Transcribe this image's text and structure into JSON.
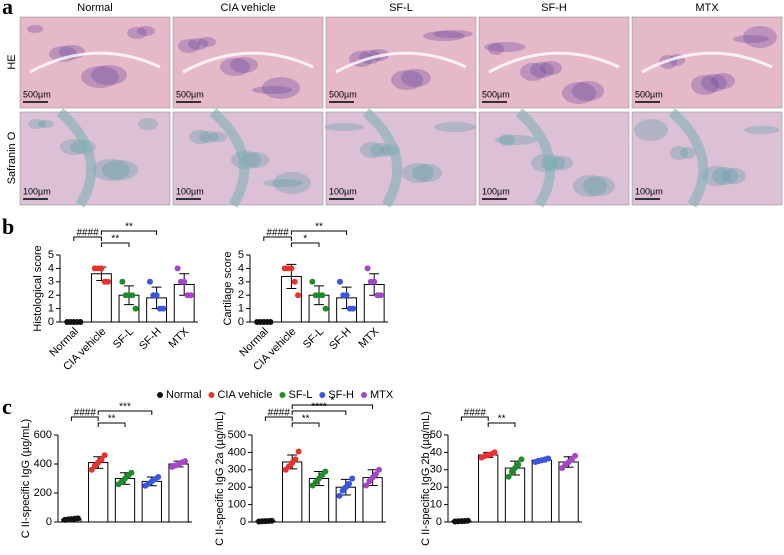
{
  "panel_labels": [
    "a",
    "b",
    "c"
  ],
  "histology": {
    "columns": [
      "Normal",
      "CIA vehicle",
      "SF-L",
      "SF-H",
      "MTX"
    ],
    "rows": [
      "HE",
      "Safranin O"
    ],
    "scale_bars": [
      "500µm",
      "100µm"
    ]
  },
  "legend": [
    {
      "name": "Normal",
      "color": "#111111"
    },
    {
      "name": "CIA vehicle",
      "color": "#e8302c"
    },
    {
      "name": "SF-L",
      "color": "#1e8c2a"
    },
    {
      "name": "SF-H",
      "color": "#3a55e0"
    },
    {
      "name": "MTX",
      "color": "#a545c8"
    }
  ],
  "chart_data": [
    {
      "type": "bar",
      "ylabel": "Histological score",
      "categories": [
        "Normal",
        "CIA vehicle",
        "SF-L",
        "SF-H",
        "MTX"
      ],
      "colors": [
        "#111111",
        "#e8302c",
        "#1e8c2a",
        "#3a55e0",
        "#a545c8"
      ],
      "values": [
        0,
        3.6,
        2.0,
        1.8,
        2.8
      ],
      "errors": [
        0,
        0.5,
        0.7,
        0.8,
        0.8
      ],
      "points": [
        [
          0,
          0,
          0,
          0,
          0
        ],
        [
          4,
          4,
          4,
          3,
          3
        ],
        [
          3,
          2,
          2,
          2,
          1
        ],
        [
          3,
          2,
          2,
          1,
          1
        ],
        [
          4,
          3,
          3,
          2,
          2
        ]
      ],
      "ylim": [
        0,
        5
      ],
      "yticks": [
        0,
        1,
        2,
        3,
        4,
        5
      ],
      "annotations": [
        {
          "label": "####",
          "between": [
            0,
            1
          ]
        },
        {
          "label": "**",
          "between": [
            1,
            2
          ]
        },
        {
          "label": "**",
          "between": [
            1,
            3
          ]
        }
      ]
    },
    {
      "type": "bar",
      "ylabel": "Cartilage score",
      "categories": [
        "Normal",
        "CIA vehicle",
        "SF-L",
        "SF-H",
        "MTX"
      ],
      "colors": [
        "#111111",
        "#e8302c",
        "#1e8c2a",
        "#3a55e0",
        "#a545c8"
      ],
      "values": [
        0,
        3.4,
        2.0,
        1.8,
        2.8
      ],
      "errors": [
        0,
        0.9,
        0.7,
        0.8,
        0.8
      ],
      "points": [
        [
          0,
          0,
          0,
          0,
          0
        ],
        [
          4,
          4,
          4,
          3,
          2
        ],
        [
          3,
          2,
          2,
          2,
          1
        ],
        [
          3,
          2,
          2,
          1,
          1
        ],
        [
          4,
          3,
          3,
          2,
          2
        ]
      ],
      "ylim": [
        0,
        5
      ],
      "yticks": [
        0,
        1,
        2,
        3,
        4,
        5
      ],
      "annotations": [
        {
          "label": "####",
          "between": [
            0,
            1
          ]
        },
        {
          "label": "*",
          "between": [
            1,
            2
          ]
        },
        {
          "label": "**",
          "between": [
            1,
            3
          ]
        }
      ]
    },
    {
      "type": "bar",
      "ylabel": "C II-specific IgG (µg/mL)",
      "categories": [
        null,
        null,
        null,
        null,
        null
      ],
      "colors": [
        "#111111",
        "#e8302c",
        "#1e8c2a",
        "#3a55e0",
        "#a545c8"
      ],
      "values": [
        20,
        410,
        300,
        280,
        400
      ],
      "errors": [
        5,
        40,
        40,
        30,
        20
      ],
      "points": [
        [
          15,
          18,
          20,
          22,
          25
        ],
        [
          360,
          390,
          410,
          430,
          460
        ],
        [
          260,
          280,
          300,
          320,
          340
        ],
        [
          250,
          265,
          280,
          295,
          310
        ],
        [
          380,
          390,
          400,
          410,
          420
        ]
      ],
      "ylim": [
        0,
        600
      ],
      "yticks": [
        0,
        200,
        400,
        600
      ],
      "annotations": [
        {
          "label": "####",
          "between": [
            0,
            1
          ]
        },
        {
          "label": "**",
          "between": [
            1,
            2
          ]
        },
        {
          "label": "***",
          "between": [
            1,
            3
          ]
        }
      ]
    },
    {
      "type": "bar",
      "ylabel": "C II-specific IgG 2a (µg/mL)",
      "categories": [
        null,
        null,
        null,
        null,
        null
      ],
      "colors": [
        "#111111",
        "#e8302c",
        "#1e8c2a",
        "#3a55e0",
        "#a545c8"
      ],
      "values": [
        5,
        345,
        250,
        200,
        255
      ],
      "errors": [
        2,
        40,
        40,
        45,
        45
      ],
      "points": [
        [
          3,
          4,
          5,
          6,
          7
        ],
        [
          300,
          320,
          340,
          360,
          405
        ],
        [
          210,
          230,
          250,
          270,
          290
        ],
        [
          150,
          180,
          200,
          220,
          250
        ],
        [
          210,
          235,
          255,
          275,
          300
        ]
      ],
      "ylim": [
        0,
        500
      ],
      "yticks": [
        0,
        100,
        200,
        300,
        400,
        500
      ],
      "annotations": [
        {
          "label": "####",
          "between": [
            0,
            1
          ]
        },
        {
          "label": "**",
          "between": [
            1,
            2
          ]
        },
        {
          "label": "****",
          "between": [
            1,
            3
          ]
        },
        {
          "label": "*",
          "between": [
            1,
            4
          ]
        }
      ]
    },
    {
      "type": "bar",
      "ylabel": "C II-specific IgG 2b (µg/mL)",
      "categories": [
        null,
        null,
        null,
        null,
        null
      ],
      "colors": [
        "#111111",
        "#e8302c",
        "#1e8c2a",
        "#3a55e0",
        "#a545c8"
      ],
      "values": [
        0.5,
        38.5,
        31,
        35.5,
        34.5
      ],
      "errors": [
        0.2,
        1.5,
        4,
        1,
        3
      ],
      "points": [
        [
          0.3,
          0.4,
          0.5,
          0.6,
          0.7
        ],
        [
          37,
          38,
          38.5,
          39,
          40
        ],
        [
          26,
          29,
          31,
          33,
          36
        ],
        [
          34.5,
          35,
          35.5,
          36,
          36.5
        ],
        [
          31,
          33,
          34.5,
          36,
          38
        ]
      ],
      "ylim": [
        0,
        50
      ],
      "yticks": [
        0,
        10,
        20,
        30,
        40,
        50
      ],
      "annotations": [
        {
          "label": "####",
          "between": [
            0,
            1
          ]
        },
        {
          "label": "**",
          "between": [
            1,
            2
          ]
        }
      ]
    }
  ]
}
